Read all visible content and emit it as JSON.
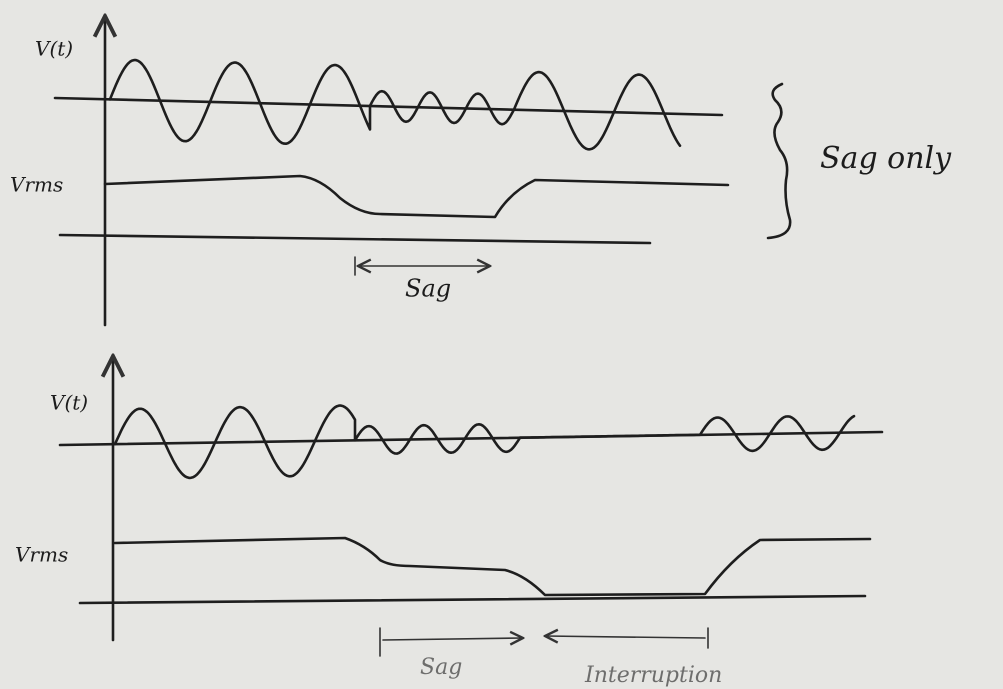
{
  "panels": [
    {
      "signal_label": "V(t)",
      "rms_label": "Vrms",
      "event_label": "Sag",
      "note": "Sag only"
    },
    {
      "signal_label": "V(t)",
      "rms_label": "Vrms",
      "event_labels": [
        "Sag",
        "Interruption"
      ]
    }
  ]
}
